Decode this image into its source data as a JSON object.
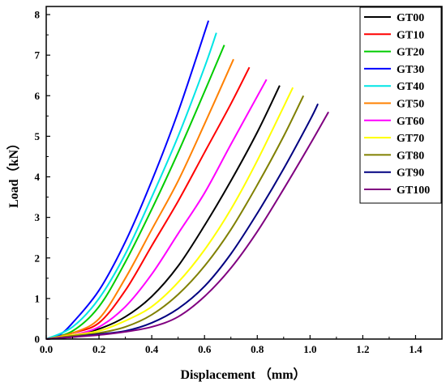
{
  "chart_data": {
    "type": "line",
    "title": "",
    "xlabel": "Displacement （mm）",
    "ylabel": "Load（kN）",
    "xlim": [
      0.0,
      1.5
    ],
    "ylim": [
      0,
      8.2
    ],
    "xticks": [
      "0.0",
      "0.2",
      "0.4",
      "0.6",
      "0.8",
      "1.0",
      "1.2",
      "1.4"
    ],
    "yticks": [
      "0",
      "1",
      "2",
      "3",
      "4",
      "5",
      "6",
      "7",
      "8"
    ],
    "grid": false,
    "legend_position": "top-right",
    "series": [
      {
        "name": "GT00",
        "color": "#000000",
        "x": [
          0,
          0.1,
          0.2,
          0.3,
          0.4,
          0.5,
          0.6,
          0.7,
          0.8,
          0.885
        ],
        "y": [
          0,
          0.1,
          0.25,
          0.55,
          1.05,
          1.8,
          2.8,
          3.9,
          5.1,
          6.25
        ]
      },
      {
        "name": "GT10",
        "color": "#ff0000",
        "x": [
          0,
          0.1,
          0.2,
          0.3,
          0.4,
          0.5,
          0.6,
          0.7,
          0.77
        ],
        "y": [
          0,
          0.15,
          0.4,
          1.2,
          2.3,
          3.4,
          4.6,
          5.8,
          6.7
        ]
      },
      {
        "name": "GT20",
        "color": "#00cc00",
        "x": [
          0,
          0.1,
          0.2,
          0.3,
          0.4,
          0.5,
          0.6,
          0.675
        ],
        "y": [
          0,
          0.2,
          0.8,
          1.9,
          3.2,
          4.6,
          6.1,
          7.25
        ]
      },
      {
        "name": "GT30",
        "color": "#0000ff",
        "x": [
          0,
          0.05,
          0.1,
          0.2,
          0.3,
          0.4,
          0.5,
          0.615
        ],
        "y": [
          0,
          0.1,
          0.4,
          1.2,
          2.4,
          3.9,
          5.6,
          7.85
        ]
      },
      {
        "name": "GT40",
        "color": "#00e5e5",
        "x": [
          0,
          0.1,
          0.2,
          0.3,
          0.4,
          0.5,
          0.6,
          0.645
        ],
        "y": [
          0,
          0.3,
          1.0,
          2.1,
          3.5,
          5.0,
          6.7,
          7.55
        ]
      },
      {
        "name": "GT50",
        "color": "#ff8000",
        "x": [
          0,
          0.1,
          0.2,
          0.3,
          0.4,
          0.5,
          0.6,
          0.71
        ],
        "y": [
          0,
          0.15,
          0.5,
          1.5,
          2.7,
          3.9,
          5.3,
          6.9
        ]
      },
      {
        "name": "GT60",
        "color": "#ff00ff",
        "x": [
          0,
          0.1,
          0.2,
          0.3,
          0.4,
          0.5,
          0.6,
          0.7,
          0.835
        ],
        "y": [
          0,
          0.1,
          0.3,
          0.8,
          1.6,
          2.6,
          3.6,
          4.8,
          6.4
        ]
      },
      {
        "name": "GT70",
        "color": "#ffff00",
        "x": [
          0,
          0.1,
          0.2,
          0.3,
          0.4,
          0.5,
          0.6,
          0.7,
          0.8,
          0.935
        ],
        "y": [
          0,
          0.1,
          0.2,
          0.45,
          0.8,
          1.4,
          2.2,
          3.2,
          4.4,
          6.2
        ]
      },
      {
        "name": "GT80",
        "color": "#808000",
        "x": [
          0,
          0.1,
          0.2,
          0.3,
          0.4,
          0.5,
          0.6,
          0.7,
          0.8,
          0.9,
          0.975
        ],
        "y": [
          0,
          0.08,
          0.15,
          0.3,
          0.6,
          1.1,
          1.8,
          2.7,
          3.8,
          5.0,
          6.0
        ]
      },
      {
        "name": "GT90",
        "color": "#000080",
        "x": [
          0,
          0.1,
          0.2,
          0.3,
          0.4,
          0.5,
          0.6,
          0.7,
          0.8,
          0.9,
          1.0,
          1.03
        ],
        "y": [
          0,
          0.05,
          0.12,
          0.2,
          0.4,
          0.75,
          1.3,
          2.1,
          3.1,
          4.2,
          5.4,
          5.8
        ]
      },
      {
        "name": "GT100",
        "color": "#800080",
        "x": [
          0,
          0.1,
          0.2,
          0.3,
          0.4,
          0.5,
          0.6,
          0.7,
          0.8,
          0.9,
          1.0,
          1.07
        ],
        "y": [
          0,
          0.05,
          0.1,
          0.18,
          0.3,
          0.55,
          1.05,
          1.75,
          2.65,
          3.7,
          4.8,
          5.6
        ]
      }
    ]
  }
}
